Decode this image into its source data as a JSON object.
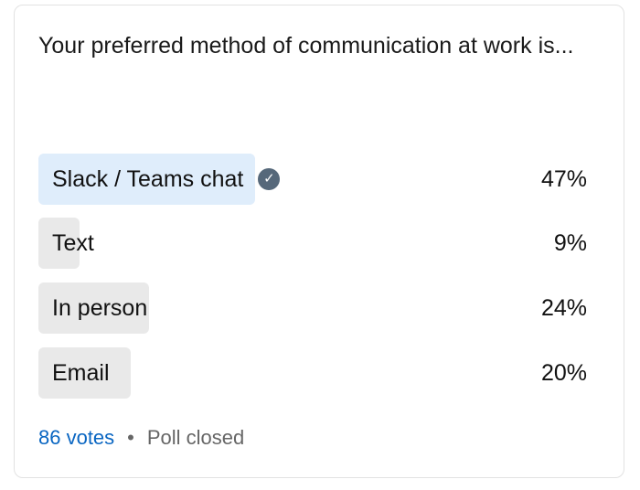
{
  "poll": {
    "question": "Your preferred method of communication at work is...",
    "options": [
      {
        "label": "Slack / Teams chat",
        "percent": "47%",
        "value": 47,
        "selected": true
      },
      {
        "label": "Text",
        "percent": "9%",
        "value": 9,
        "selected": false
      },
      {
        "label": "In person",
        "percent": "24%",
        "value": 24,
        "selected": false
      },
      {
        "label": "Email",
        "percent": "20%",
        "value": 20,
        "selected": false
      }
    ],
    "votes": "86 votes",
    "separator": "•",
    "status": "Poll closed"
  },
  "colors": {
    "winner_bar": "#dfedfb",
    "bar": "#e9e9e9",
    "link": "#0a66c2",
    "check": "#56687a"
  }
}
